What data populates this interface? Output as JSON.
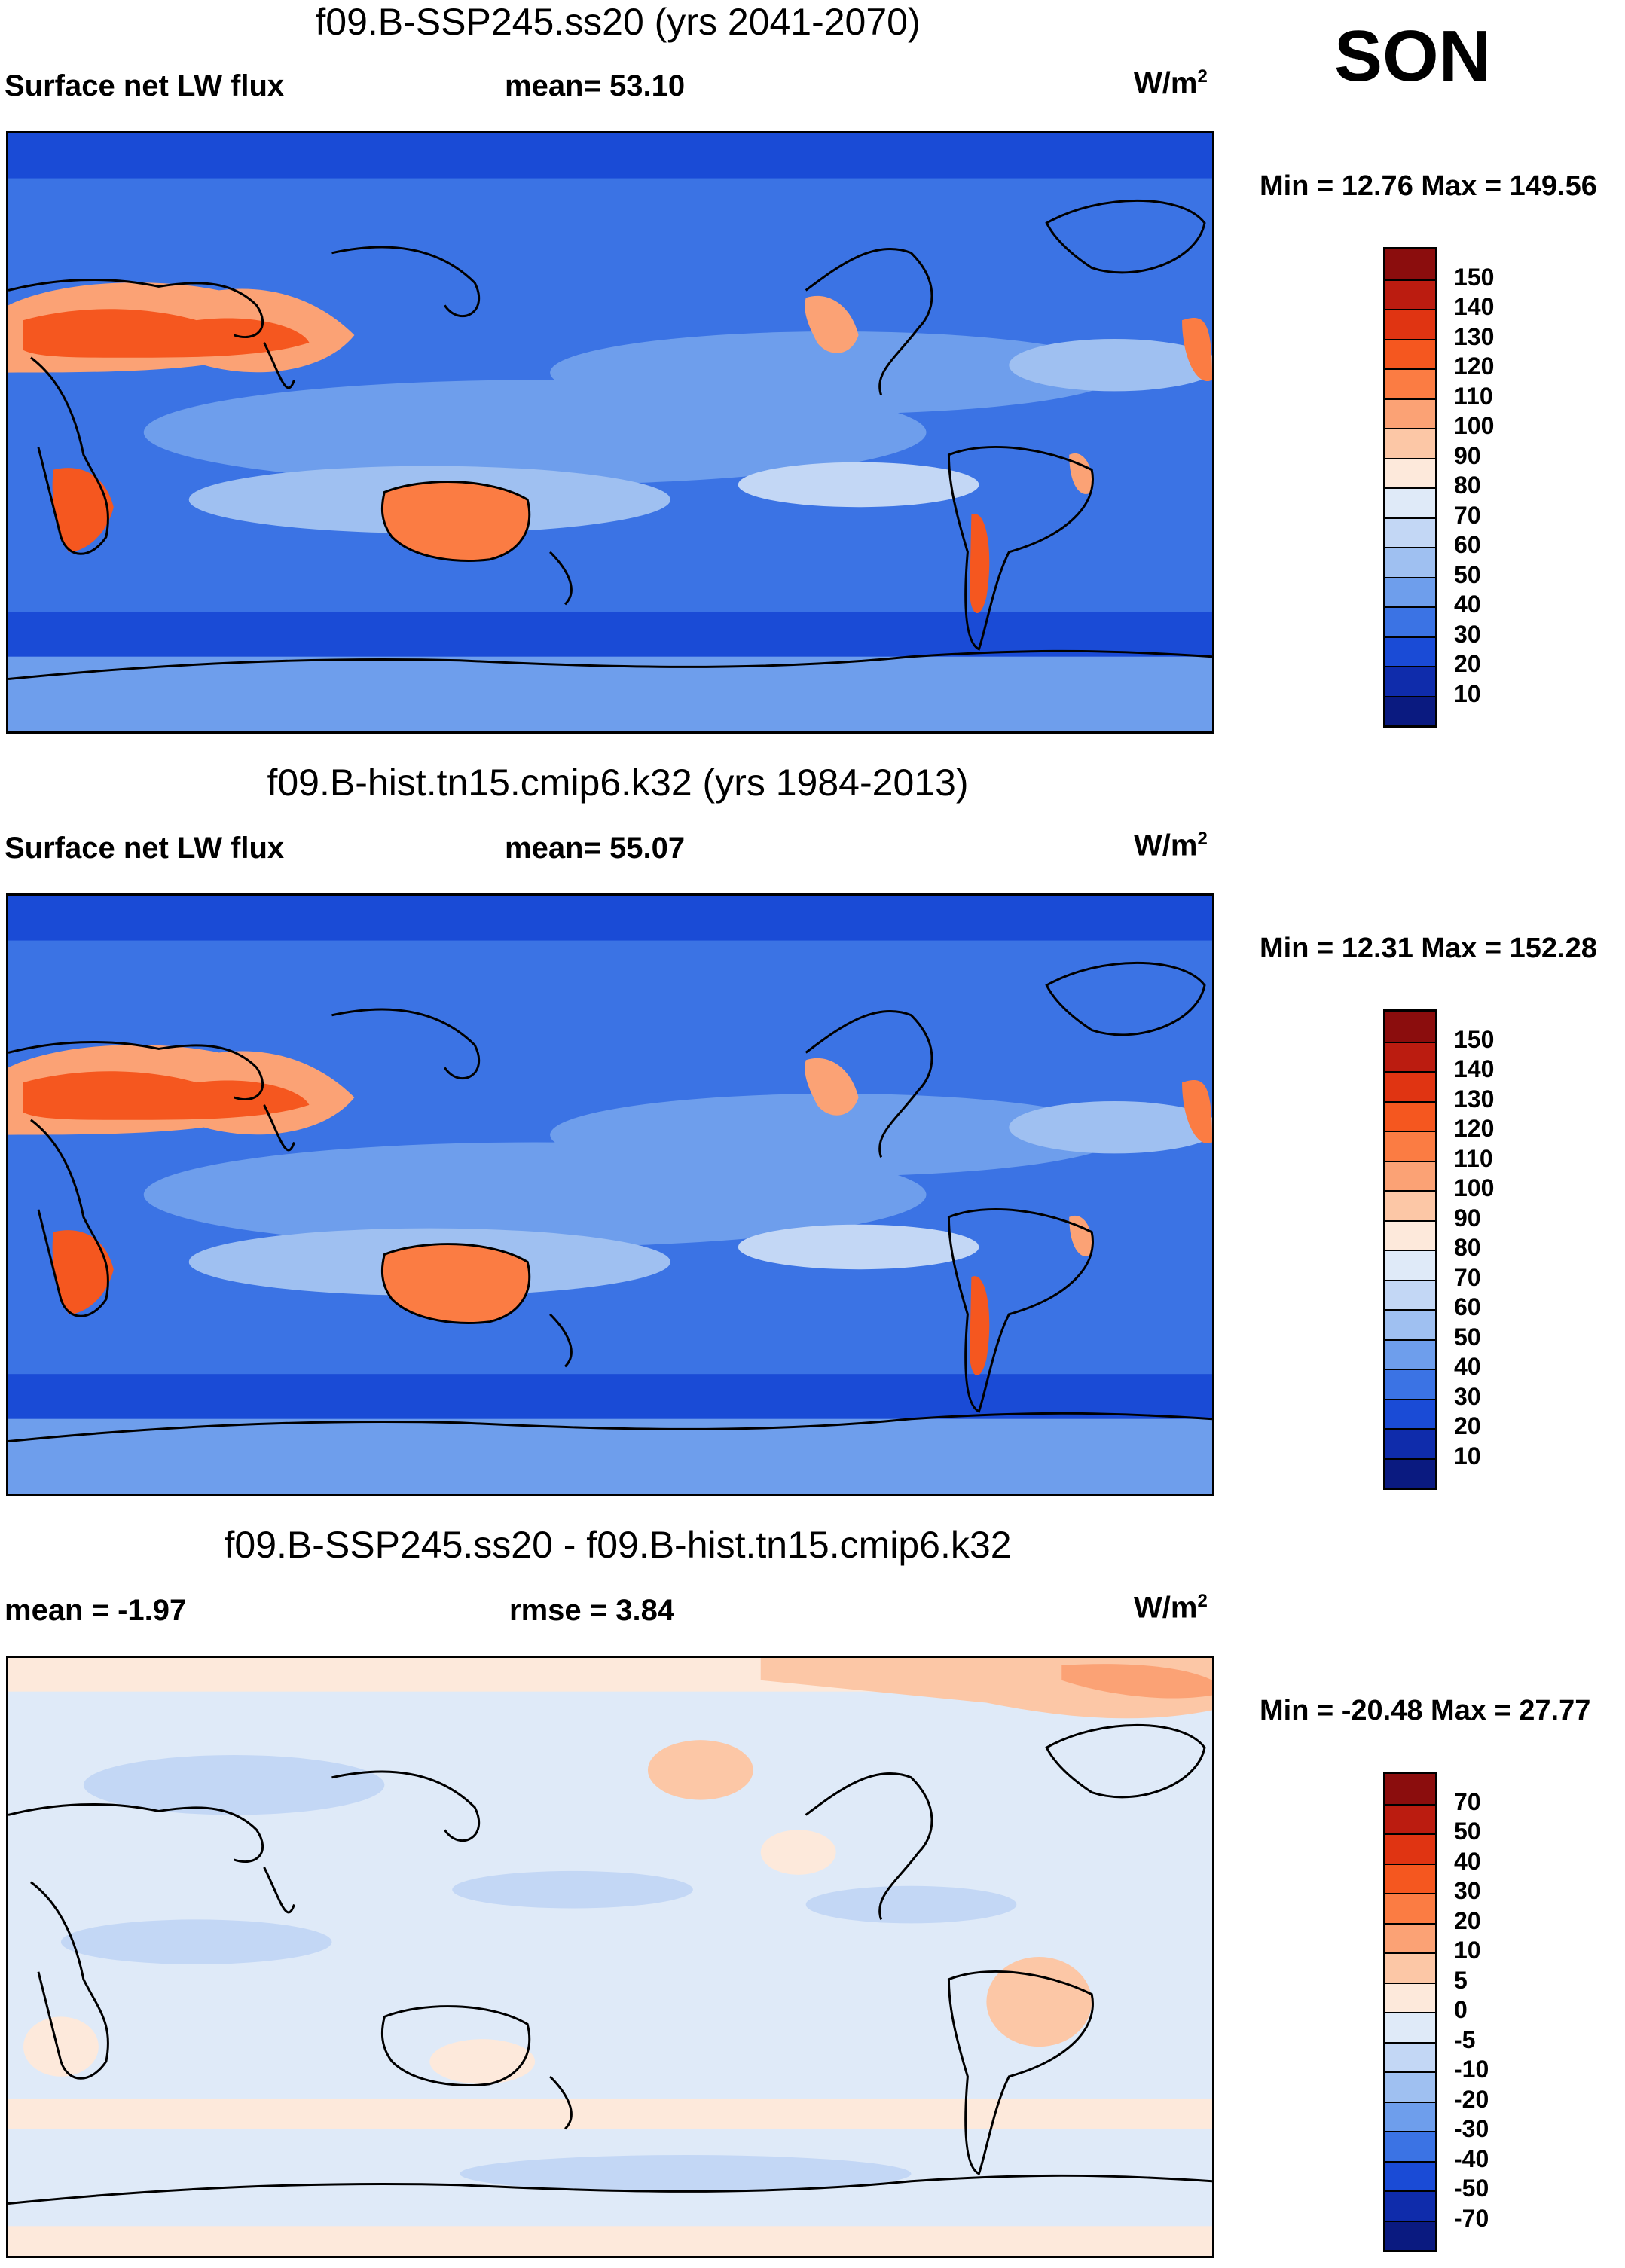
{
  "season": "SON",
  "panels": [
    {
      "title": "f09.B-SSP245.ss20 (yrs 2041-2070)",
      "left_label": "Surface net LW flux",
      "center_label": "mean=  53.10",
      "units_base": "W/m",
      "units_exp": "2",
      "minmax": "Min =  12.76 Max = 149.56",
      "type": "abs"
    },
    {
      "title": "f09.B-hist.tn15.cmip6.k32 (yrs 1984-2013)",
      "left_label": "Surface net LW flux",
      "center_label": "mean=  55.07",
      "units_base": "W/m",
      "units_exp": "2",
      "minmax": "Min =  12.31 Max = 152.28",
      "type": "abs"
    },
    {
      "title": "f09.B-SSP245.ss20 - f09.B-hist.tn15.cmip6.k32",
      "left_label": "mean =  -1.97",
      "center_label": "rmse =    3.84",
      "units_base": "W/m",
      "units_exp": "2",
      "minmax": "Min = -20.48 Max =  27.77",
      "type": "diff"
    }
  ],
  "colorbars": {
    "abs": {
      "labels": [
        "150",
        "140",
        "130",
        "120",
        "110",
        "100",
        "90",
        "80",
        "70",
        "60",
        "50",
        "40",
        "30",
        "20",
        "10"
      ],
      "colors": [
        "#8b0d0d",
        "#bb1c10",
        "#e03412",
        "#f5571f",
        "#fb7c43",
        "#fba275",
        "#fcc7a6",
        "#fde9db",
        "#dfeaf8",
        "#c3d7f5",
        "#9fc0f1",
        "#6e9eec",
        "#3b73e4",
        "#1a4bd6",
        "#0f2cab",
        "#0a1a80"
      ]
    },
    "diff": {
      "labels": [
        "70",
        "50",
        "40",
        "30",
        "20",
        "10",
        "5",
        "0",
        "-5",
        "-10",
        "-20",
        "-30",
        "-40",
        "-50",
        "-70"
      ],
      "colors": [
        "#8b0d0d",
        "#bb1c10",
        "#e03412",
        "#f5571f",
        "#fb7c43",
        "#fba275",
        "#fcc7a6",
        "#fde9db",
        "#dfeaf8",
        "#c3d7f5",
        "#9fc0f1",
        "#6e9eec",
        "#3b73e4",
        "#1a4bd6",
        "#0f2cab",
        "#0a1a80"
      ]
    }
  }
}
